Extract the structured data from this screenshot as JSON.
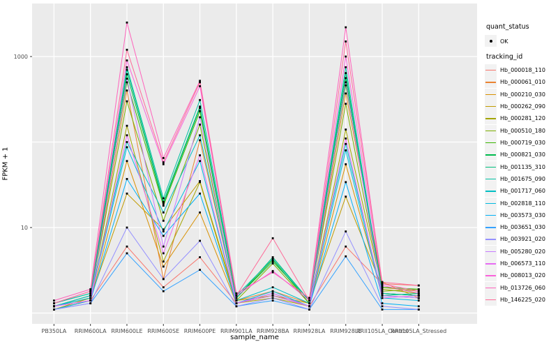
{
  "figure": {
    "background": "#ffffff",
    "panel_background": "#ebebeb",
    "gridline_color": "#ffffff",
    "axis_text_color": "#4d4d4d",
    "tick_mark_color": "#333333",
    "point_color": "#000000"
  },
  "chart_data": {
    "type": "line",
    "title": "",
    "xlabel": "sample_name",
    "ylabel": "FPKM + 1",
    "y_scale": "log10",
    "y_tick_labels": [
      10,
      1000
    ],
    "y_gridlines": [
      1,
      10,
      100,
      1000
    ],
    "ylim": [
      0.75,
      4200
    ],
    "grid": true,
    "legend_position": "right",
    "point_shape": "filled-square",
    "categories": [
      "PB350LA",
      "RRIM600LA",
      "RRIM600LE",
      "RRIM600SE",
      "RRIM600PE",
      "RRIM901LA",
      "RRIM928BA",
      "RRIM928LA",
      "RRIM928LE",
      "RRII105LA_Control",
      "RRII105LA_Stressed"
    ],
    "series": [
      {
        "name": "Hb_000018_110",
        "color": "#F8766D",
        "values": [
          1.2,
          1.4,
          6,
          2.0,
          4.5,
          1.3,
          1.6,
          1.2,
          6,
          2.2,
          2.1
        ]
      },
      {
        "name": "Hb_000061_010",
        "color": "#EA8331",
        "values": [
          1.2,
          1.5,
          400,
          2.5,
          105,
          1.4,
          1.8,
          1.3,
          370,
          2.3,
          1.5
        ]
      },
      {
        "name": "Hb_000210_030",
        "color": "#D89000",
        "values": [
          1.1,
          1.4,
          60,
          3.5,
          15,
          1.3,
          1.6,
          1.2,
          55,
          1.7,
          1.6
        ]
      },
      {
        "name": "Hb_000262_090",
        "color": "#C09B00",
        "values": [
          1.1,
          1.5,
          25,
          9.5,
          35,
          1.4,
          1.6,
          1.3,
          23,
          2.0,
          1.8
        ]
      },
      {
        "name": "Hb_000281_120",
        "color": "#A3A500",
        "values": [
          1.1,
          1.4,
          155,
          4.0,
          34,
          1.3,
          1.5,
          1.2,
          140,
          1.9,
          1.7
        ]
      },
      {
        "name": "Hb_000510_180",
        "color": "#7CAE00",
        "values": [
          1.2,
          1.5,
          300,
          12,
          160,
          1.4,
          3.8,
          1.3,
          280,
          1.8,
          1.9
        ]
      },
      {
        "name": "Hb_000719_030",
        "color": "#39B600",
        "values": [
          1.2,
          1.6,
          500,
          18,
          230,
          1.5,
          4.2,
          1.3,
          460,
          2.0,
          1.9
        ]
      },
      {
        "name": "Hb_000821_030",
        "color": "#00BB4E",
        "values": [
          1.2,
          1.6,
          620,
          19,
          250,
          1.5,
          4.0,
          1.4,
          560,
          1.7,
          1.6
        ]
      },
      {
        "name": "Hb_001135_310",
        "color": "#00BF7D",
        "values": [
          1.3,
          1.7,
          700,
          20,
          260,
          1.5,
          4.5,
          1.4,
          640,
          1.6,
          1.7
        ]
      },
      {
        "name": "Hb_001675_090",
        "color": "#00C1A3",
        "values": [
          1.3,
          1.7,
          750,
          22,
          310,
          1.6,
          4.3,
          1.4,
          750,
          1.7,
          1.6
        ]
      },
      {
        "name": "Hb_001717_060",
        "color": "#00BFC4",
        "values": [
          1.2,
          1.6,
          100,
          15,
          120,
          1.4,
          2.0,
          1.3,
          95,
          1.6,
          1.5
        ]
      },
      {
        "name": "Hb_002818_110",
        "color": "#00BAE0",
        "values": [
          1.2,
          1.5,
          87,
          9,
          60,
          1.3,
          1.8,
          1.2,
          80,
          1.5,
          1.4
        ]
      },
      {
        "name": "Hb_003573_030",
        "color": "#00B0F6",
        "values": [
          1.1,
          1.4,
          37,
          8,
          25,
          1.3,
          1.7,
          1.2,
          34,
          1.3,
          1.2
        ]
      },
      {
        "name": "Hb_003651_030",
        "color": "#35A2FF",
        "values": [
          1.1,
          1.3,
          5,
          1.8,
          3.2,
          1.2,
          1.4,
          1.1,
          4.6,
          1.1,
          1.1
        ]
      },
      {
        "name": "Hb_003921_020",
        "color": "#9590FF",
        "values": [
          1.1,
          1.3,
          10,
          2.5,
          7,
          1.2,
          1.5,
          1.1,
          9,
          1.2,
          1.1
        ]
      },
      {
        "name": "Hb_005280_020",
        "color": "#C77CFF",
        "values": [
          1.2,
          1.4,
          550,
          6,
          195,
          1.3,
          1.6,
          1.2,
          500,
          1.6,
          1.5
        ]
      },
      {
        "name": "Hb_006573_110",
        "color": "#E76BF3",
        "values": [
          1.2,
          1.4,
          120,
          5,
          70,
          1.3,
          1.7,
          1.2,
          110,
          1.5,
          1.6
        ]
      },
      {
        "name": "Hb_008013_020",
        "color": "#FA62DB",
        "values": [
          1.3,
          1.8,
          900,
          55,
          450,
          1.6,
          3.1,
          1.4,
          1000,
          2.1,
          1.7
        ]
      },
      {
        "name": "Hb_013726_060",
        "color": "#FF62BC",
        "values": [
          1.4,
          1.9,
          2500,
          65,
          520,
          1.7,
          3.0,
          1.5,
          2200,
          2.2,
          1.8
        ]
      },
      {
        "name": "Hb_146225_020",
        "color": "#FF6A98",
        "values": [
          1.3,
          1.8,
          1200,
          58,
          500,
          1.6,
          7.5,
          1.4,
          1500,
          2.3,
          2.1
        ]
      }
    ]
  },
  "legend": {
    "quant_status": {
      "title": "quant_status",
      "items": [
        {
          "label": "OK"
        }
      ]
    },
    "tracking_id": {
      "title": "tracking_id"
    }
  }
}
